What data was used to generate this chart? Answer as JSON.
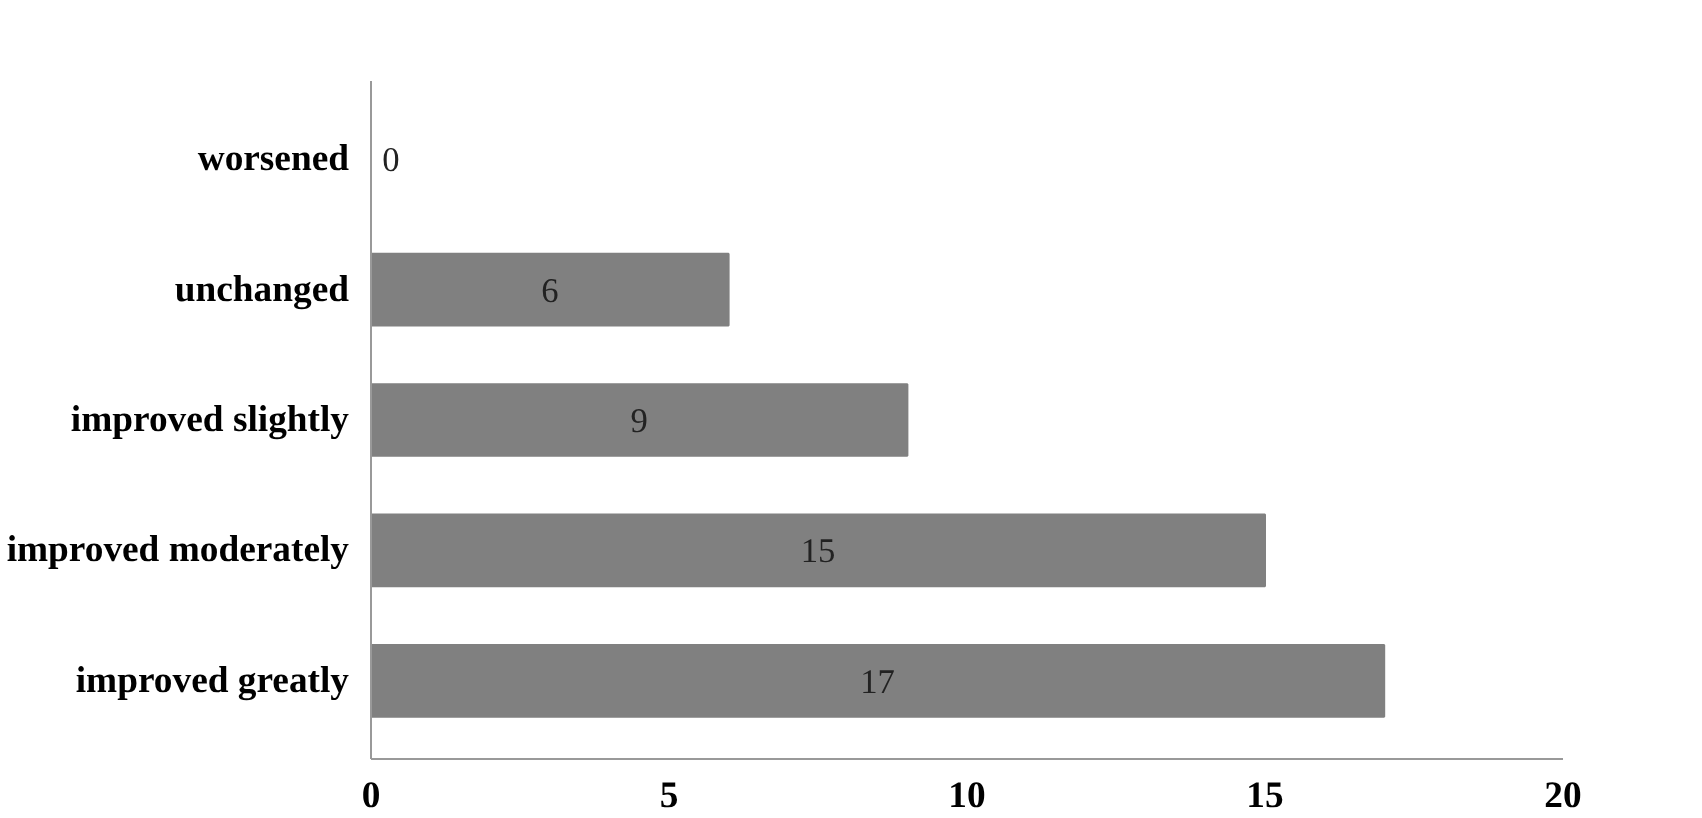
{
  "chart_data": {
    "type": "bar",
    "orientation": "horizontal",
    "categories": [
      "worsened",
      "unchanged",
      "improved slightly",
      "improved moderately",
      "improved greatly"
    ],
    "values": [
      0,
      6,
      9,
      15,
      17
    ],
    "color": "#808080",
    "xlim": [
      0,
      20
    ],
    "xticks": [
      0,
      5,
      10,
      15,
      20
    ],
    "grid": false,
    "data_labels": true
  }
}
